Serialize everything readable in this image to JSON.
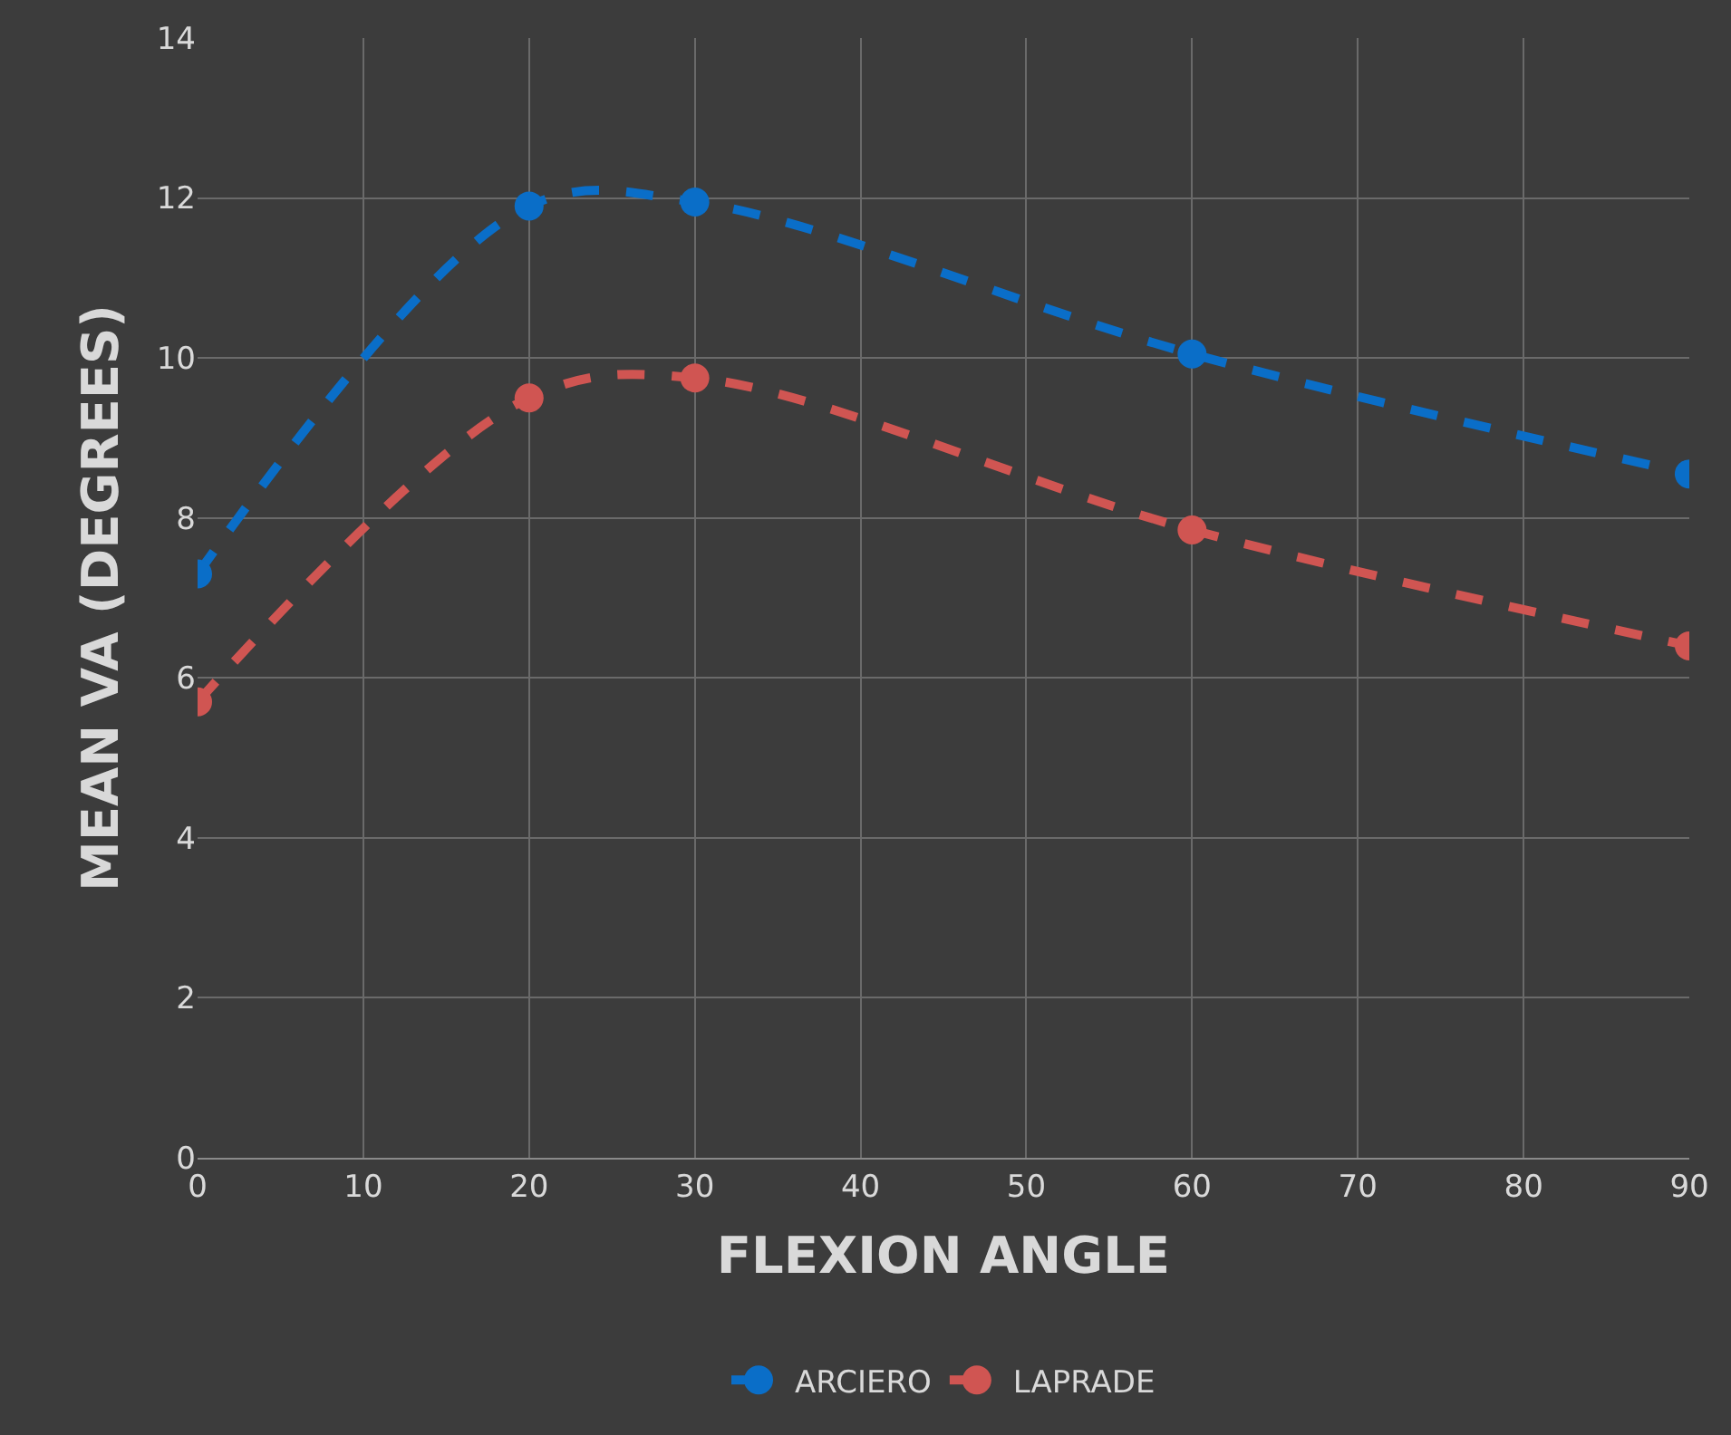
{
  "chart_data": {
    "type": "line",
    "xlabel": "FLEXION ANGLE",
    "ylabel": "MEAN VA (DEGREES)",
    "x": [
      0,
      20,
      30,
      60,
      90
    ],
    "series": [
      {
        "name": "ARCIERO",
        "color": "#0a6ec8",
        "values": [
          7.3,
          11.9,
          11.95,
          10.05,
          8.55
        ]
      },
      {
        "name": "LAPRADE",
        "color": "#d05552",
        "values": [
          5.7,
          9.5,
          9.75,
          7.85,
          6.4
        ]
      }
    ],
    "xlim": [
      0,
      90
    ],
    "xticks": [
      0,
      10,
      20,
      30,
      40,
      50,
      60,
      70,
      80,
      90
    ],
    "ylim": [
      0,
      14
    ],
    "yticks": [
      0,
      2,
      4,
      6,
      8,
      10,
      12,
      14
    ],
    "grid": true,
    "legend": "bottom",
    "marker": "circle",
    "line_style": "dashed"
  }
}
